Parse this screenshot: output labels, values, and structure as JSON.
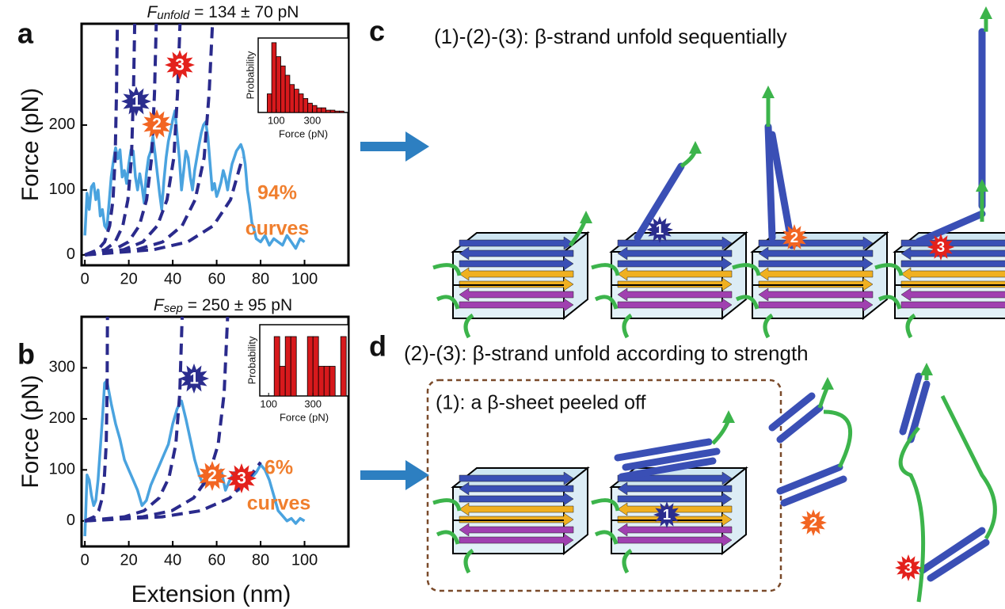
{
  "chart_data": [
    {
      "type": "line",
      "panel": "a",
      "title": [
        "F",
        "unfold",
        " = 134 ± 70 pN"
      ],
      "ylabel": "Force (pN)",
      "xlim": [
        -1.5,
        120
      ],
      "ylim": [
        -16,
        356
      ],
      "xticks": [
        0,
        20,
        40,
        60,
        80,
        100
      ],
      "yticks": [
        0,
        100,
        200
      ],
      "series": [
        {
          "color": "#4aa3df",
          "x": [
            0,
            1,
            2,
            3,
            4,
            5,
            6,
            7,
            8,
            9,
            10,
            11,
            12,
            13,
            14,
            15,
            16,
            17,
            18,
            19,
            20,
            21,
            22,
            23,
            24,
            25,
            26,
            27,
            28,
            29,
            30,
            31,
            32,
            33,
            34,
            35,
            36,
            37,
            38,
            39,
            40,
            41,
            42,
            43,
            44,
            45,
            46,
            47,
            48,
            49,
            50,
            51,
            52,
            53,
            54,
            55,
            56,
            57,
            58,
            59,
            60,
            61,
            62,
            63,
            64,
            65,
            66,
            67,
            68,
            69,
            70,
            71,
            72,
            73,
            74,
            75,
            76,
            77,
            78,
            80,
            82,
            84,
            86,
            88,
            90,
            92,
            94,
            96,
            98,
            100
          ],
          "values": [
            30,
            95,
            70,
            105,
            110,
            85,
            100,
            60,
            70,
            45,
            40,
            80,
            120,
            145,
            165,
            148,
            162,
            120,
            130,
            110,
            140,
            162,
            160,
            120,
            100,
            125,
            105,
            80,
            125,
            150,
            160,
            182,
            155,
            125,
            95,
            70,
            115,
            150,
            175,
            190,
            208,
            222,
            185,
            150,
            100,
            130,
            160,
            150,
            120,
            100,
            130,
            150,
            170,
            188,
            200,
            205,
            182,
            140,
            100,
            110,
            90,
            100,
            112,
            130,
            118,
            100,
            122,
            140,
            150,
            160,
            165,
            170,
            160,
            140,
            100,
            78,
            50,
            40,
            25,
            20,
            30,
            15,
            25,
            20,
            15,
            30,
            20,
            10,
            25,
            20
          ]
        },
        {
          "color": "#2a2a8c",
          "dash": true,
          "x": [
            0,
            6,
            9,
            11.3,
            12.8,
            13.8,
            14.4,
            14.8
          ],
          "values": [
            0,
            8,
            20,
            45,
            85,
            150,
            250,
            356
          ]
        },
        {
          "color": "#2a2a8c",
          "dash": true,
          "x": [
            0,
            9.2,
            13.8,
            17.3,
            19.6,
            21.2,
            22.1,
            22.7
          ],
          "values": [
            0,
            8,
            20,
            45,
            85,
            150,
            250,
            356
          ]
        },
        {
          "color": "#2a2a8c",
          "dash": true,
          "x": [
            0,
            13.2,
            19.8,
            24.8,
            28.1,
            30.4,
            31.7,
            32.5
          ],
          "values": [
            0,
            8,
            20,
            45,
            85,
            150,
            250,
            356
          ]
        },
        {
          "color": "#2a2a8c",
          "dash": true,
          "x": [
            0,
            17.6,
            26.4,
            33,
            37.4,
            40.5,
            42.2,
            43.3
          ],
          "values": [
            0,
            8,
            20,
            45,
            85,
            150,
            250,
            356
          ]
        },
        {
          "color": "#2a2a8c",
          "dash": true,
          "x": [
            0,
            23.6,
            35.4,
            44.3,
            50.2,
            54.3,
            56.6,
            58.1
          ],
          "values": [
            0,
            8,
            20,
            45,
            85,
            150,
            250,
            356
          ]
        },
        {
          "color": "#2a2a8c",
          "dash": true,
          "x": [
            0,
            31.2,
            46.8,
            58.5,
            66.3,
            71.8
          ],
          "values": [
            0,
            8,
            20,
            45,
            85,
            150
          ]
        }
      ],
      "annotations": [
        "94%",
        "curves"
      ],
      "annotation_color": "#f07f2e",
      "steps": [
        "1",
        "2",
        "3"
      ]
    },
    {
      "type": "histogram",
      "ylabel": "Probability",
      "xlabel": "Force (pN)",
      "color": "#d7191c",
      "bins": [
        50,
        75,
        100,
        125,
        150,
        175,
        200,
        225,
        250,
        275,
        300,
        325,
        350,
        375,
        400,
        425,
        450,
        475
      ],
      "values": [
        0.04,
        0.15,
        0.12,
        0.1,
        0.08,
        0.06,
        0.05,
        0.04,
        0.03,
        0.02,
        0.015,
        0.01,
        0.01,
        0.005,
        0.005,
        0.003,
        0.003
      ],
      "xlim": [
        0,
        500
      ],
      "ylim": [
        0,
        0.16
      ],
      "xticks": [
        100,
        300
      ]
    },
    {
      "type": "line",
      "panel": "b",
      "title": [
        "F",
        "sep",
        " = 250 ± 95 pN"
      ],
      "ylabel": "Force (pN)",
      "xlabel": "Extension (nm)",
      "xlim": [
        -1.5,
        120
      ],
      "ylim": [
        -50,
        400
      ],
      "xticks": [
        0,
        20,
        40,
        60,
        80,
        100
      ],
      "yticks": [
        0,
        100,
        200,
        300
      ],
      "series": [
        {
          "color": "#4aa3df",
          "x": [
            0,
            1,
            2,
            3,
            4,
            5,
            6,
            8,
            9,
            10,
            12,
            14,
            16,
            18,
            20,
            22,
            24,
            26,
            28,
            30,
            32,
            34,
            36,
            38,
            40,
            42,
            44,
            46,
            48,
            50,
            52,
            54,
            56,
            58,
            60,
            62,
            64,
            66,
            68,
            70,
            72,
            74,
            76,
            78,
            80,
            82,
            84,
            86,
            88,
            90,
            92,
            94,
            96,
            98,
            100
          ],
          "values": [
            -30,
            90,
            80,
            50,
            30,
            40,
            80,
            200,
            270,
            275,
            230,
            190,
            160,
            120,
            100,
            80,
            60,
            30,
            40,
            70,
            90,
            110,
            130,
            150,
            190,
            220,
            235,
            200,
            160,
            120,
            90,
            70,
            80,
            85,
            90,
            100,
            60,
            80,
            95,
            60,
            100,
            90,
            85,
            95,
            110,
            100,
            80,
            50,
            20,
            10,
            0,
            5,
            -5,
            5,
            0
          ]
        },
        {
          "color": "#2a2a8c",
          "dash": true,
          "x": [
            0,
            4.2,
            6.3,
            7.9,
            8.9,
            9.7,
            10.1,
            10.3
          ],
          "values": [
            0,
            8,
            20,
            45,
            85,
            150,
            250,
            400
          ]
        },
        {
          "color": "#2a2a8c",
          "dash": true,
          "x": [
            0,
            18,
            27,
            33.8,
            38.3,
            41.4,
            43.2,
            44.3
          ],
          "values": [
            0,
            8,
            20,
            45,
            85,
            150,
            250,
            400
          ]
        },
        {
          "color": "#2a2a8c",
          "dash": true,
          "x": [
            0,
            26.4,
            39.6,
            49.5,
            56.1,
            60.7,
            63.4,
            65
          ],
          "values": [
            0,
            8,
            20,
            45,
            85,
            150,
            250,
            400
          ]
        },
        {
          "color": "#2a2a8c",
          "dash": true,
          "x": [
            0,
            35.2,
            52.8,
            66,
            74.8,
            80
          ],
          "values": [
            0,
            8,
            20,
            45,
            85,
            115
          ]
        }
      ],
      "annotations": [
        "6%",
        "curves"
      ],
      "annotation_color": "#f07f2e",
      "steps": [
        "1",
        "2",
        "3"
      ]
    },
    {
      "type": "histogram",
      "ylabel": "Probability",
      "xlabel": "Force (pN)",
      "color": "#d7191c",
      "bins": [
        100,
        125,
        150,
        175,
        200,
        225,
        250,
        275,
        300,
        325,
        350,
        375,
        400,
        425,
        450
      ],
      "values": [
        0,
        2,
        1,
        2,
        2,
        0,
        0,
        2,
        2,
        1,
        1,
        1,
        0,
        2
      ],
      "xlim": [
        60,
        460
      ],
      "ylim": [
        0,
        2.4
      ],
      "xticks": [
        100,
        300
      ]
    }
  ],
  "panel_c": {
    "label": "c",
    "caption": "(1)-(2)-(3): β-strand unfold sequentially",
    "steps": [
      "1",
      "2",
      "3"
    ]
  },
  "panel_d": {
    "label": "d",
    "caption": "(2)-(3): β-strand unfold according to strength",
    "box_caption": "(1): a β-sheet peeled off",
    "steps": [
      "1",
      "2",
      "3"
    ]
  }
}
